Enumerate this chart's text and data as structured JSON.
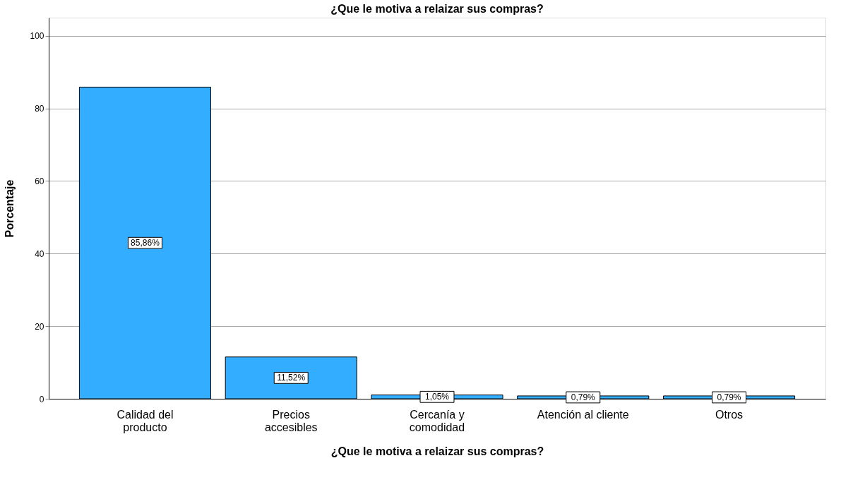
{
  "chart_data": {
    "type": "bar",
    "title": "¿Que le motiva a relaizar sus compras?",
    "xlabel": "¿Que le motiva a relaizar sus compras?",
    "ylabel": "Porcentaje",
    "categories": [
      "Calidad del\nproducto",
      "Precios\naccesibles",
      "Cercanía y\ncomodidad",
      "Atención al cliente",
      "Otros"
    ],
    "values": [
      85.86,
      11.52,
      1.05,
      0.79,
      0.79
    ],
    "value_labels": [
      "85,86%",
      "11,52%",
      "1,05%",
      "0,79%",
      "0,79%"
    ],
    "color": "#33adff",
    "ylim": [
      0,
      105
    ],
    "yticks": [
      0,
      20,
      40,
      60,
      80,
      100
    ],
    "grid": "y"
  }
}
